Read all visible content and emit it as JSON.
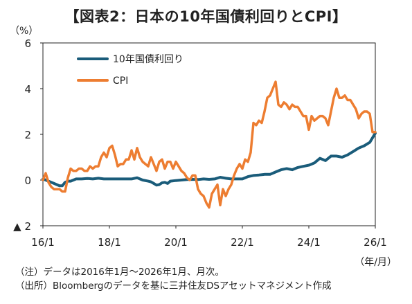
{
  "title": "【図表2：日本の10年国債利回りとCPI】",
  "unit_label": "（%）",
  "x_unit_label": "（年/月）",
  "notes": [
    "（注）データは2016年1月～2026年1月、月次。",
    "（出所）Bloombergのデータを基に三井住友DSアセットマネジメント作成"
  ],
  "colors": {
    "jgb": "#1a5c7a",
    "cpi": "#ed7d31",
    "axis": "#222222"
  },
  "chart_data": {
    "type": "line",
    "title": "【図表2：日本の10年国債利回りとCPI】",
    "xlabel": "（年/月）",
    "ylabel": "（%）",
    "ylim": [
      -2,
      6
    ],
    "xlim": [
      0,
      120
    ],
    "x_tick_values": [
      0,
      24,
      48,
      72,
      96,
      120
    ],
    "x_tick_labels": [
      "16/1",
      "18/1",
      "20/1",
      "22/1",
      "24/1",
      "26/1"
    ],
    "y_tick_values": [
      6,
      4,
      2,
      0,
      -2
    ],
    "y_tick_labels": [
      "6",
      "4",
      "2",
      "0",
      "▲ 2"
    ],
    "grid": false,
    "legend": "top-left",
    "series": [
      {
        "name": "10年国債利回り",
        "color": "#1a5c7a",
        "x": [
          0,
          2,
          4,
          5,
          6,
          7,
          8,
          9,
          10,
          12,
          14,
          16,
          18,
          20,
          22,
          24,
          26,
          28,
          30,
          32,
          34,
          35,
          36,
          38,
          39,
          40,
          41,
          42,
          43,
          44,
          45,
          46,
          48,
          50,
          52,
          54,
          56,
          58,
          60,
          62,
          64,
          66,
          68,
          70,
          72,
          74,
          76,
          78,
          80,
          82,
          84,
          86,
          88,
          90,
          92,
          94,
          96,
          98,
          100,
          102,
          104,
          106,
          108,
          110,
          112,
          114,
          116,
          118,
          120
        ],
        "values": [
          0.05,
          -0.05,
          -0.15,
          -0.2,
          -0.25,
          -0.25,
          -0.1,
          -0.05,
          -0.05,
          0.05,
          0.05,
          0.07,
          0.05,
          0.08,
          0.05,
          0.05,
          0.05,
          0.05,
          0.05,
          0.05,
          0.1,
          0.05,
          0.0,
          -0.05,
          -0.08,
          -0.15,
          -0.22,
          -0.2,
          -0.12,
          -0.1,
          -0.15,
          -0.05,
          -0.02,
          0.0,
          0.02,
          0.03,
          0.02,
          0.05,
          0.03,
          0.05,
          0.12,
          0.08,
          0.05,
          0.05,
          0.05,
          0.15,
          0.2,
          0.22,
          0.25,
          0.25,
          0.35,
          0.45,
          0.5,
          0.45,
          0.55,
          0.6,
          0.65,
          0.75,
          0.95,
          0.85,
          1.05,
          1.05,
          1.0,
          1.1,
          1.25,
          1.4,
          1.5,
          1.65,
          2.05
        ]
      },
      {
        "name": "CPI",
        "color": "#ed7d31",
        "x": [
          0,
          1,
          2,
          3,
          4,
          5,
          6,
          7,
          8,
          9,
          10,
          11,
          12,
          13,
          14,
          15,
          16,
          17,
          18,
          19,
          20,
          21,
          22,
          23,
          24,
          25,
          26,
          27,
          28,
          29,
          30,
          31,
          32,
          33,
          34,
          35,
          36,
          37,
          38,
          39,
          40,
          41,
          42,
          43,
          44,
          45,
          46,
          47,
          48,
          49,
          50,
          51,
          52,
          53,
          54,
          55,
          56,
          57,
          58,
          59,
          60,
          61,
          62,
          63,
          64,
          65,
          66,
          67,
          68,
          69,
          70,
          71,
          72,
          73,
          74,
          75,
          76,
          77,
          78,
          79,
          80,
          81,
          82,
          83,
          84,
          85,
          86,
          87,
          88,
          89,
          90,
          91,
          92,
          93,
          94,
          95,
          96,
          97,
          98,
          99,
          100,
          101,
          102,
          103,
          104,
          105,
          106,
          107,
          108,
          109,
          110,
          111,
          112,
          113,
          114,
          115,
          116,
          117,
          118,
          119,
          120
        ],
        "values": [
          0.0,
          0.3,
          -0.1,
          -0.3,
          -0.4,
          -0.4,
          -0.4,
          -0.5,
          -0.5,
          0.1,
          0.5,
          0.4,
          0.4,
          0.5,
          0.5,
          0.4,
          0.4,
          0.6,
          0.5,
          0.6,
          0.6,
          1.0,
          1.2,
          1.0,
          1.4,
          1.5,
          1.1,
          0.6,
          0.7,
          0.7,
          0.9,
          0.9,
          1.3,
          0.9,
          1.4,
          1.0,
          0.8,
          0.7,
          0.6,
          1.0,
          0.7,
          0.4,
          0.8,
          0.9,
          0.5,
          0.8,
          0.8,
          0.5,
          0.8,
          0.6,
          0.4,
          0.3,
          0.1,
          0.0,
          0.2,
          0.2,
          -0.4,
          -0.6,
          -0.7,
          -1.0,
          -1.2,
          -0.6,
          -0.4,
          -0.2,
          -1.1,
          -0.4,
          -0.7,
          -0.4,
          -0.2,
          0.2,
          0.5,
          0.7,
          0.5,
          0.9,
          0.8,
          1.2,
          2.5,
          2.4,
          2.6,
          2.5,
          3.0,
          3.6,
          3.7,
          4.0,
          4.3,
          3.3,
          3.2,
          3.4,
          3.3,
          3.1,
          3.3,
          3.2,
          3.2,
          3.0,
          2.8,
          2.8,
          2.2,
          2.8,
          2.6,
          2.7,
          2.8,
          2.8,
          2.7,
          2.4,
          3.0,
          3.6,
          4.0,
          3.6,
          3.6,
          3.7,
          3.5,
          3.5,
          3.3,
          3.1,
          2.7,
          2.9,
          3.0,
          3.0,
          2.9,
          2.1,
          2.1
        ]
      }
    ]
  }
}
